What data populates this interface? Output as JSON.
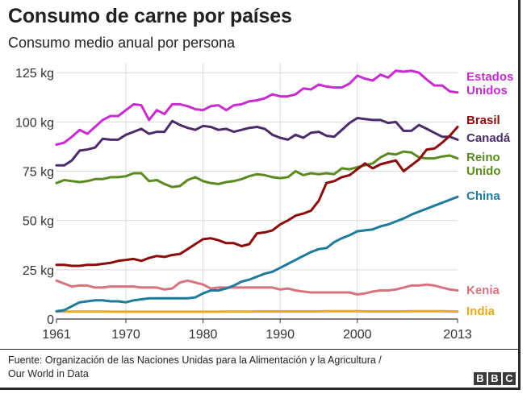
{
  "header": {
    "title": "Consumo de carne por países",
    "subtitle": "Consumo medio anual por persona"
  },
  "footer": {
    "source_line1": "Fuente: Organización de las Naciones Unidas para la Alimentación y la Agricultura /",
    "source_line2": "Our World in Data",
    "logo_letters": [
      "B",
      "B",
      "C"
    ]
  },
  "chart_data": {
    "type": "line",
    "title": "Consumo de carne por países",
    "subtitle": "Consumo medio anual por persona",
    "xlabel": "",
    "ylabel": "",
    "x_ticks": [
      1961,
      1970,
      1980,
      1990,
      2000,
      2013
    ],
    "y_ticks": [
      0,
      25,
      50,
      75,
      100,
      125
    ],
    "y_tick_labels": [
      "0",
      "25 kg",
      "50 kg",
      "75 kg",
      "100 kg",
      "125 kg"
    ],
    "xlim": [
      1961,
      2013
    ],
    "ylim": [
      0,
      130
    ],
    "grid": true,
    "legend": "right, labels next to line ends",
    "x": [
      1961,
      1962,
      1963,
      1964,
      1965,
      1966,
      1967,
      1968,
      1969,
      1970,
      1971,
      1972,
      1973,
      1974,
      1975,
      1976,
      1977,
      1978,
      1979,
      1980,
      1981,
      1982,
      1983,
      1984,
      1985,
      1986,
      1987,
      1988,
      1989,
      1990,
      1991,
      1992,
      1993,
      1994,
      1995,
      1996,
      1997,
      1998,
      1999,
      2000,
      2001,
      2002,
      2003,
      2004,
      2005,
      2006,
      2007,
      2008,
      2009,
      2010,
      2011,
      2012,
      2013
    ],
    "series": [
      {
        "name": "Estados Unidos",
        "label_lines": [
          "Estados",
          "Unidos"
        ],
        "color": "#c72bd1",
        "values": [
          88.5,
          89.5,
          92.5,
          96.0,
          94.0,
          97.5,
          101.0,
          103.0,
          103.0,
          106.0,
          109.0,
          108.5,
          101.0,
          106.0,
          104.0,
          109.0,
          109.0,
          108.0,
          106.5,
          106.0,
          108.0,
          108.5,
          106.0,
          108.5,
          109.0,
          110.5,
          111.0,
          112.0,
          114.0,
          113.0,
          113.0,
          114.0,
          117.0,
          116.5,
          119.0,
          118.0,
          117.5,
          117.5,
          119.5,
          123.5,
          122.0,
          121.0,
          124.0,
          122.5,
          126.0,
          125.5,
          126.0,
          125.0,
          121.5,
          118.5,
          118.5,
          115.5,
          115.0
        ]
      },
      {
        "name": "Brasil",
        "label_lines": [
          "Brasil"
        ],
        "color": "#8b0a0a",
        "values": [
          27.5,
          27.5,
          27.0,
          27.0,
          27.5,
          27.5,
          28.0,
          28.5,
          29.5,
          30.0,
          30.5,
          29.5,
          31.0,
          32.0,
          31.5,
          32.5,
          33.0,
          35.5,
          38.0,
          40.5,
          41.0,
          40.0,
          38.5,
          38.5,
          37.0,
          38.0,
          43.5,
          44.0,
          45.0,
          48.0,
          50.0,
          52.5,
          53.5,
          55.0,
          60.0,
          69.0,
          70.0,
          72.0,
          73.0,
          76.0,
          79.0,
          76.5,
          78.5,
          79.5,
          80.5,
          75.0,
          78.0,
          81.0,
          86.0,
          86.5,
          89.5,
          93.0,
          97.5
        ]
      },
      {
        "name": "Canadá",
        "label_lines": [
          "Canadá"
        ],
        "color": "#4b2b6a",
        "values": [
          78.0,
          78.0,
          80.5,
          85.5,
          86.0,
          87.0,
          91.5,
          91.0,
          91.0,
          93.5,
          95.0,
          96.5,
          94.0,
          95.0,
          95.0,
          100.5,
          98.5,
          97.0,
          96.0,
          98.0,
          97.5,
          96.0,
          96.5,
          95.0,
          96.0,
          97.0,
          97.5,
          96.5,
          93.5,
          92.0,
          91.0,
          93.5,
          92.0,
          94.5,
          95.0,
          93.0,
          92.5,
          96.0,
          99.5,
          102.0,
          101.5,
          101.0,
          101.0,
          99.5,
          100.0,
          95.5,
          95.5,
          98.5,
          96.5,
          94.5,
          92.5,
          92.5,
          91.0
        ]
      },
      {
        "name": "Reino Unido",
        "label_lines": [
          "Reino",
          "Unido"
        ],
        "color": "#5b8a1e",
        "values": [
          69.0,
          70.5,
          70.0,
          69.5,
          70.0,
          71.0,
          71.0,
          72.0,
          72.0,
          72.5,
          74.0,
          74.0,
          70.0,
          70.5,
          68.5,
          67.0,
          67.5,
          70.5,
          72.0,
          70.0,
          69.0,
          68.5,
          69.5,
          70.0,
          71.0,
          72.5,
          73.5,
          73.0,
          72.0,
          71.5,
          72.0,
          75.0,
          73.0,
          74.0,
          73.5,
          74.0,
          73.5,
          76.5,
          76.0,
          77.0,
          78.0,
          79.0,
          82.0,
          84.0,
          83.5,
          85.0,
          84.5,
          82.0,
          81.5,
          81.5,
          82.5,
          83.0,
          81.5
        ]
      },
      {
        "name": "China",
        "label_lines": [
          "China"
        ],
        "color": "#1f7a9c",
        "values": [
          4.0,
          4.5,
          6.5,
          8.5,
          9.0,
          9.5,
          9.5,
          9.0,
          9.0,
          8.5,
          9.5,
          10.0,
          10.5,
          10.5,
          10.5,
          10.5,
          10.5,
          10.5,
          11.0,
          13.0,
          14.5,
          14.5,
          15.5,
          17.0,
          19.0,
          20.0,
          21.5,
          23.0,
          24.0,
          26.0,
          28.0,
          30.0,
          32.0,
          34.0,
          35.5,
          36.0,
          39.0,
          41.0,
          42.5,
          44.5,
          45.0,
          45.5,
          47.0,
          48.0,
          49.5,
          51.0,
          53.0,
          54.5,
          56.0,
          57.5,
          59.0,
          60.5,
          62.0
        ]
      },
      {
        "name": "Kenia",
        "label_lines": [
          "Kenia"
        ],
        "color": "#d9727a",
        "values": [
          19.5,
          18.0,
          16.5,
          17.0,
          17.0,
          16.0,
          16.0,
          16.5,
          16.5,
          16.5,
          16.5,
          16.0,
          16.0,
          16.0,
          15.0,
          15.5,
          18.5,
          19.5,
          18.5,
          17.5,
          15.5,
          16.0,
          16.0,
          16.0,
          16.0,
          16.0,
          16.0,
          16.0,
          16.0,
          15.0,
          15.5,
          14.5,
          14.0,
          13.5,
          13.5,
          13.5,
          13.5,
          13.5,
          13.5,
          12.5,
          13.0,
          14.0,
          14.5,
          14.5,
          15.0,
          16.0,
          17.0,
          17.0,
          17.5,
          17.0,
          16.0,
          15.0,
          14.5
        ]
      },
      {
        "name": "India",
        "label_lines": [
          "India"
        ],
        "color": "#e8a91c",
        "values": [
          3.8,
          3.8,
          3.8,
          3.8,
          3.8,
          3.8,
          3.8,
          3.7,
          3.7,
          3.7,
          3.7,
          3.7,
          3.7,
          3.7,
          3.7,
          3.7,
          3.7,
          3.7,
          3.7,
          3.7,
          3.7,
          3.7,
          3.8,
          3.8,
          3.8,
          3.8,
          3.9,
          3.9,
          3.9,
          3.9,
          3.9,
          3.9,
          3.9,
          3.9,
          3.9,
          4.0,
          4.0,
          4.0,
          4.0,
          4.0,
          3.9,
          3.9,
          3.9,
          3.9,
          3.9,
          3.9,
          4.0,
          4.0,
          4.0,
          4.0,
          4.0,
          3.9,
          3.8
        ]
      }
    ]
  }
}
